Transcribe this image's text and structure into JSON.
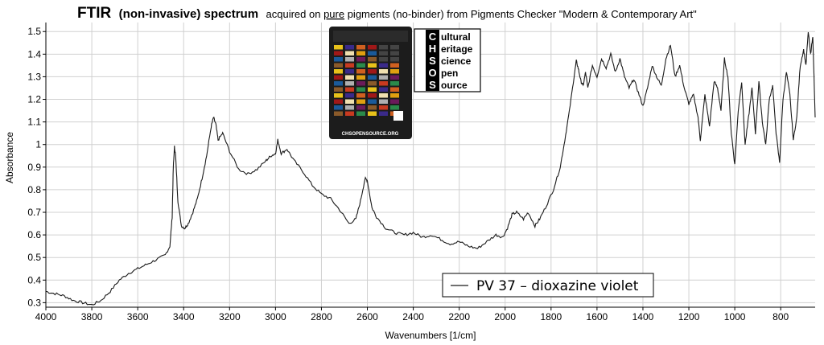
{
  "title": {
    "bold": "FTIR",
    "bold_paren": "(non-invasive) spectrum",
    "rest_pre": "acquired on ",
    "rest_underlined": "pure",
    "rest_post": " pigments (no-binder) from Pigments Checker \"Modern & Contemporary Art\""
  },
  "logo": {
    "letters": [
      "C",
      "H",
      "S",
      "O",
      "S"
    ],
    "words": [
      "ultural",
      "eritage",
      "cience",
      "pen",
      "ource"
    ],
    "card_url": "CHSOPENSOURCE.ORG"
  },
  "legend": {
    "label": "PV 37 – dioxazine violet",
    "placement": "bottom-center"
  },
  "colors": {
    "line": "#1a1a1a",
    "grid": "#d0d0d0",
    "card": "#1c1c1c"
  },
  "chart_data": {
    "type": "line",
    "title": "FTIR (non-invasive) spectrum acquired on pure pigments (no-binder) from Pigments Checker \"Modern & Contemporary Art\"",
    "xlabel": "Wavenumbers [1/cm]",
    "ylabel": "Absorbance",
    "xlim": [
      4000,
      650
    ],
    "ylim": [
      0.28,
      1.54
    ],
    "x_reversed": true,
    "grid": true,
    "xticks": [
      4000,
      3800,
      3600,
      3400,
      3200,
      3000,
      2800,
      2600,
      2400,
      2200,
      2000,
      1800,
      1600,
      1400,
      1200,
      1000,
      800
    ],
    "yticks": [
      0.3,
      0.4,
      0.5,
      0.6,
      0.7,
      0.8,
      0.9,
      1,
      1.1,
      1.2,
      1.3,
      1.4,
      1.5
    ],
    "series": [
      {
        "name": "PV 37 – dioxazine violet",
        "points": [
          [
            4000,
            0.35
          ],
          [
            3960,
            0.34
          ],
          [
            3920,
            0.33
          ],
          [
            3880,
            0.31
          ],
          [
            3840,
            0.3
          ],
          [
            3800,
            0.29
          ],
          [
            3760,
            0.31
          ],
          [
            3720,
            0.35
          ],
          [
            3680,
            0.4
          ],
          [
            3640,
            0.43
          ],
          [
            3600,
            0.45
          ],
          [
            3560,
            0.47
          ],
          [
            3520,
            0.49
          ],
          [
            3480,
            0.51
          ],
          [
            3460,
            0.55
          ],
          [
            3450,
            0.68
          ],
          [
            3445,
            0.9
          ],
          [
            3440,
            0.99
          ],
          [
            3435,
            0.95
          ],
          [
            3425,
            0.75
          ],
          [
            3410,
            0.64
          ],
          [
            3395,
            0.63
          ],
          [
            3380,
            0.65
          ],
          [
            3360,
            0.7
          ],
          [
            3340,
            0.76
          ],
          [
            3320,
            0.85
          ],
          [
            3300,
            0.95
          ],
          [
            3280,
            1.08
          ],
          [
            3270,
            1.12
          ],
          [
            3260,
            1.09
          ],
          [
            3250,
            1.02
          ],
          [
            3230,
            1.05
          ],
          [
            3200,
            0.97
          ],
          [
            3160,
            0.89
          ],
          [
            3120,
            0.87
          ],
          [
            3080,
            0.89
          ],
          [
            3040,
            0.93
          ],
          [
            3020,
            0.95
          ],
          [
            3000,
            0.96
          ],
          [
            2990,
            1.02
          ],
          [
            2975,
            0.96
          ],
          [
            2950,
            0.98
          ],
          [
            2920,
            0.93
          ],
          [
            2880,
            0.88
          ],
          [
            2840,
            0.82
          ],
          [
            2800,
            0.78
          ],
          [
            2760,
            0.76
          ],
          [
            2720,
            0.71
          ],
          [
            2680,
            0.65
          ],
          [
            2650,
            0.67
          ],
          [
            2630,
            0.75
          ],
          [
            2610,
            0.85
          ],
          [
            2600,
            0.84
          ],
          [
            2580,
            0.72
          ],
          [
            2560,
            0.68
          ],
          [
            2520,
            0.63
          ],
          [
            2480,
            0.61
          ],
          [
            2440,
            0.6
          ],
          [
            2400,
            0.61
          ],
          [
            2360,
            0.59
          ],
          [
            2320,
            0.6
          ],
          [
            2280,
            0.58
          ],
          [
            2240,
            0.56
          ],
          [
            2200,
            0.57
          ],
          [
            2160,
            0.55
          ],
          [
            2120,
            0.54
          ],
          [
            2080,
            0.57
          ],
          [
            2040,
            0.6
          ],
          [
            2010,
            0.59
          ],
          [
            1990,
            0.63
          ],
          [
            1970,
            0.69
          ],
          [
            1950,
            0.7
          ],
          [
            1920,
            0.67
          ],
          [
            1900,
            0.7
          ],
          [
            1870,
            0.64
          ],
          [
            1850,
            0.67
          ],
          [
            1820,
            0.73
          ],
          [
            1790,
            0.8
          ],
          [
            1760,
            0.9
          ],
          [
            1740,
            1.02
          ],
          [
            1720,
            1.15
          ],
          [
            1700,
            1.3
          ],
          [
            1690,
            1.37
          ],
          [
            1680,
            1.33
          ],
          [
            1670,
            1.28
          ],
          [
            1660,
            1.26
          ],
          [
            1650,
            1.32
          ],
          [
            1640,
            1.25
          ],
          [
            1620,
            1.35
          ],
          [
            1600,
            1.3
          ],
          [
            1580,
            1.38
          ],
          [
            1560,
            1.34
          ],
          [
            1540,
            1.4
          ],
          [
            1520,
            1.32
          ],
          [
            1500,
            1.38
          ],
          [
            1480,
            1.3
          ],
          [
            1460,
            1.25
          ],
          [
            1440,
            1.29
          ],
          [
            1420,
            1.23
          ],
          [
            1400,
            1.17
          ],
          [
            1380,
            1.25
          ],
          [
            1360,
            1.35
          ],
          [
            1340,
            1.3
          ],
          [
            1320,
            1.26
          ],
          [
            1300,
            1.38
          ],
          [
            1280,
            1.44
          ],
          [
            1260,
            1.3
          ],
          [
            1240,
            1.35
          ],
          [
            1220,
            1.25
          ],
          [
            1200,
            1.18
          ],
          [
            1180,
            1.22
          ],
          [
            1160,
            1.12
          ],
          [
            1150,
            1.02
          ],
          [
            1130,
            1.22
          ],
          [
            1110,
            1.08
          ],
          [
            1090,
            1.28
          ],
          [
            1075,
            1.25
          ],
          [
            1060,
            1.15
          ],
          [
            1045,
            1.38
          ],
          [
            1030,
            1.3
          ],
          [
            1015,
            1.05
          ],
          [
            1000,
            0.91
          ],
          [
            985,
            1.15
          ],
          [
            970,
            1.28
          ],
          [
            955,
            1.0
          ],
          [
            940,
            1.12
          ],
          [
            925,
            1.25
          ],
          [
            910,
            1.05
          ],
          [
            895,
            1.28
          ],
          [
            880,
            1.1
          ],
          [
            865,
            1.0
          ],
          [
            850,
            1.2
          ],
          [
            835,
            1.26
          ],
          [
            820,
            1.05
          ],
          [
            805,
            0.92
          ],
          [
            790,
            1.2
          ],
          [
            775,
            1.32
          ],
          [
            760,
            1.22
          ],
          [
            745,
            1.02
          ],
          [
            730,
            1.12
          ],
          [
            715,
            1.35
          ],
          [
            700,
            1.42
          ],
          [
            690,
            1.35
          ],
          [
            680,
            1.5
          ],
          [
            670,
            1.4
          ],
          [
            660,
            1.48
          ],
          [
            650,
            1.12
          ]
        ]
      }
    ]
  }
}
